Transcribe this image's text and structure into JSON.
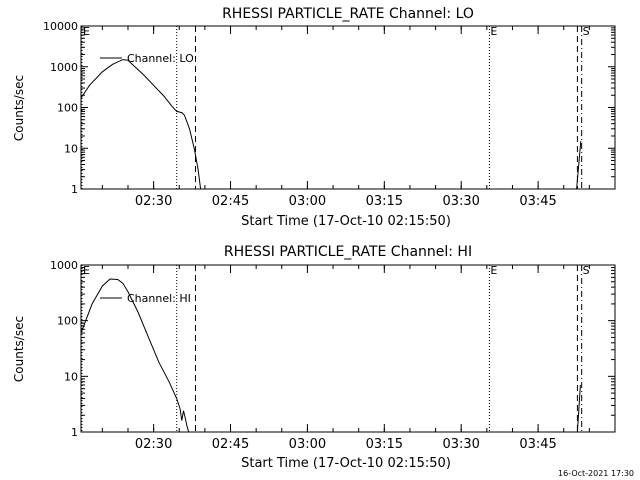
{
  "stamp": "16-Oct-2021 17:30",
  "chart_data": [
    {
      "type": "line",
      "title": "RHESSI PARTICLE_RATE Channel: LO",
      "xlabel": "Start Time (17-Oct-10 02:15:50)",
      "ylabel": "Counts/sec",
      "y_scale": "log",
      "xlim": [
        "02:15:50",
        "04:00:00"
      ],
      "ylim": [
        1,
        10000
      ],
      "x_ticks": [
        "02:30",
        "02:45",
        "03:00",
        "03:15",
        "03:30",
        "03:45"
      ],
      "y_ticks": [
        "1",
        "10",
        "100",
        "1000",
        "10000"
      ],
      "legend": {
        "position": "top-left",
        "entries": [
          "Channel: LO"
        ]
      },
      "markers": [
        {
          "label": "E",
          "time": "02:15:50",
          "style": "dotted"
        },
        {
          "label": "",
          "time": "02:34:30",
          "style": "dotted"
        },
        {
          "label": "",
          "time": "02:38:10",
          "style": "dashed"
        },
        {
          "label": "E",
          "time": "03:35:30",
          "style": "dotted"
        },
        {
          "label": "",
          "time": "03:52:40",
          "style": "dashed"
        },
        {
          "label": "S",
          "time": "03:53:30",
          "style": "dash-dot"
        }
      ],
      "series": [
        {
          "name": "Channel: LO",
          "x": [
            "02:15:50",
            "02:17:30",
            "02:20:00",
            "02:22:00",
            "02:24:00",
            "02:25:00",
            "02:26:00",
            "02:28:00",
            "02:30:00",
            "02:32:00",
            "02:33:30",
            "02:34:30",
            "02:35:30",
            "02:36:00",
            "02:37:00",
            "02:38:00",
            "02:38:40",
            "02:39:10"
          ],
          "values": [
            170,
            350,
            750,
            1150,
            1500,
            1450,
            1100,
            640,
            350,
            190,
            110,
            80,
            75,
            65,
            30,
            9,
            3,
            1
          ]
        },
        {
          "name": "",
          "x": [
            "03:52:30",
            "03:53:00",
            "03:53:20"
          ],
          "values": [
            1,
            5,
            15
          ]
        }
      ]
    },
    {
      "type": "line",
      "title": "RHESSI PARTICLE_RATE Channel: HI",
      "xlabel": "Start Time (17-Oct-10 02:15:50)",
      "ylabel": "Counts/sec",
      "y_scale": "log",
      "xlim": [
        "02:15:50",
        "04:00:00"
      ],
      "ylim": [
        1,
        1000
      ],
      "x_ticks": [
        "02:30",
        "02:45",
        "03:00",
        "03:15",
        "03:30",
        "03:45"
      ],
      "y_ticks": [
        "1",
        "10",
        "100",
        "1000"
      ],
      "legend": {
        "position": "top-left",
        "entries": [
          "Channel: HI"
        ]
      },
      "markers": [
        {
          "label": "E",
          "time": "02:15:50",
          "style": "dotted"
        },
        {
          "label": "",
          "time": "02:34:30",
          "style": "dotted"
        },
        {
          "label": "",
          "time": "02:38:10",
          "style": "dashed"
        },
        {
          "label": "E",
          "time": "03:35:30",
          "style": "dotted"
        },
        {
          "label": "",
          "time": "03:52:40",
          "style": "dashed"
        },
        {
          "label": "S",
          "time": "03:53:30",
          "style": "dash-dot"
        }
      ],
      "series": [
        {
          "name": "Channel: HI",
          "x": [
            "02:15:50",
            "02:18:00",
            "02:20:00",
            "02:21:30",
            "02:23:00",
            "02:24:00",
            "02:25:00",
            "02:27:00",
            "02:29:00",
            "02:31:00",
            "02:33:00",
            "02:34:30",
            "02:35:10",
            "02:35:30",
            "02:35:50",
            "02:36:10",
            "02:36:30",
            "02:36:50"
          ],
          "values": [
            60,
            200,
            420,
            560,
            550,
            470,
            330,
            140,
            50,
            18,
            8,
            4,
            2.6,
            1.6,
            2.4,
            1.8,
            1.3,
            1
          ]
        },
        {
          "name": "",
          "x": [
            "03:52:40",
            "03:53:00",
            "03:53:15"
          ],
          "values": [
            1,
            3,
            7
          ]
        }
      ]
    }
  ]
}
